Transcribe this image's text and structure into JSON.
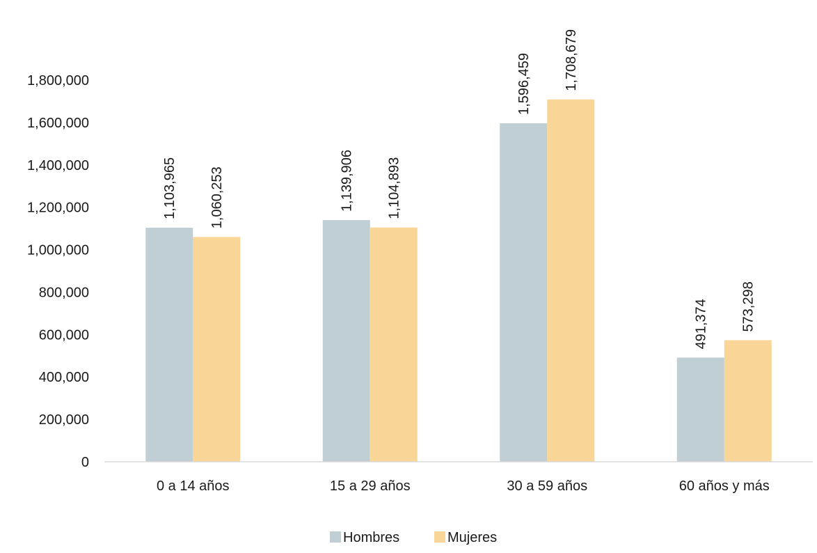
{
  "chart_data": {
    "type": "bar",
    "categories": [
      "0 a 14 años",
      "15 a 29 años",
      "30 a 59 años",
      "60 años y más"
    ],
    "series": [
      {
        "name": "Hombres",
        "color": "#bfcfd4",
        "values": [
          1103965,
          1139906,
          1596459,
          491374
        ],
        "labels": [
          "1,103,965",
          "1,139,906",
          "1,596,459",
          "491,374"
        ]
      },
      {
        "name": "Mujeres",
        "color": "#f9d597",
        "values": [
          1060253,
          1104893,
          1708679,
          573298
        ],
        "labels": [
          "1,060,253",
          "1,104,893",
          "1,708,679",
          "573,298"
        ]
      }
    ],
    "yticks": [
      0,
      200000,
      400000,
      600000,
      800000,
      1000000,
      1200000,
      1400000,
      1600000,
      1800000
    ],
    "ytick_labels": [
      "0",
      "200,000",
      "400,000",
      "600,000",
      "800,000",
      "1,000,000",
      "1,200,000",
      "1,400,000",
      "1,600,000",
      "1,800,000"
    ],
    "ylim": [
      0,
      1800000
    ],
    "title": "",
    "xlabel": "",
    "ylabel": "",
    "grid": false,
    "legend_position": "bottom"
  }
}
